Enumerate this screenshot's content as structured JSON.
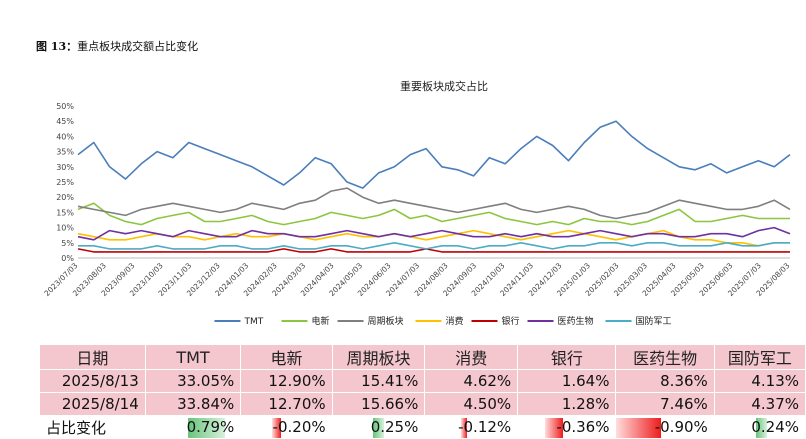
{
  "figure_label": "图 13：",
  "figure_title": "重点板块成交额占比变化",
  "chart_data": {
    "type": "line",
    "title": "重要板块成交占比",
    "ylim": [
      0,
      50
    ],
    "y_ticks": [
      "0%",
      "5%",
      "10%",
      "15%",
      "20%",
      "25%",
      "30%",
      "35%",
      "40%",
      "45%",
      "50%"
    ],
    "x_ticks": [
      "2023/07/03",
      "2023/08/03",
      "2023/09/03",
      "2023/10/03",
      "2023/11/03",
      "2023/12/03",
      "2024/01/03",
      "2024/02/03",
      "2024/03/03",
      "2024/04/03",
      "2024/05/03",
      "2024/06/03",
      "2024/07/03",
      "2024/08/03",
      "2024/09/03",
      "2024/10/03",
      "2024/11/03",
      "2024/12/03",
      "2025/01/03",
      "2025/02/03",
      "2025/03/03",
      "2025/04/03",
      "2025/05/03",
      "2025/06/03",
      "2025/07/03",
      "2025/08/03"
    ],
    "legend_position": "bottom",
    "series": [
      {
        "name": "TMT",
        "color": "#4a7ebb",
        "values": [
          34,
          38,
          30,
          26,
          31,
          35,
          33,
          38,
          36,
          34,
          32,
          30,
          27,
          24,
          28,
          33,
          31,
          25,
          23,
          28,
          30,
          34,
          36,
          30,
          29,
          27,
          33,
          31,
          36,
          40,
          37,
          32,
          38,
          43,
          45,
          40,
          36,
          33,
          30,
          29,
          31,
          28,
          30,
          32,
          30,
          34
        ]
      },
      {
        "name": "电新",
        "color": "#8cc63f",
        "values": [
          16,
          18,
          14,
          12,
          11,
          13,
          14,
          15,
          12,
          12,
          13,
          14,
          12,
          11,
          12,
          13,
          15,
          14,
          13,
          14,
          16,
          13,
          14,
          12,
          13,
          14,
          15,
          13,
          12,
          11,
          12,
          11,
          13,
          12,
          12,
          11,
          12,
          14,
          16,
          12,
          12,
          13,
          14,
          13,
          13,
          13
        ]
      },
      {
        "name": "周期板块",
        "color": "#7f7f7f",
        "values": [
          17,
          16,
          15,
          14,
          16,
          17,
          18,
          17,
          16,
          15,
          16,
          18,
          17,
          16,
          18,
          19,
          22,
          23,
          20,
          18,
          19,
          18,
          17,
          16,
          15,
          16,
          17,
          18,
          16,
          15,
          16,
          17,
          16,
          14,
          13,
          14,
          15,
          17,
          19,
          18,
          17,
          16,
          16,
          17,
          19,
          16
        ]
      },
      {
        "name": "消费",
        "color": "#ffc000",
        "values": [
          8,
          7,
          6,
          6,
          7,
          8,
          7,
          7,
          6,
          7,
          8,
          7,
          7,
          8,
          7,
          6,
          7,
          8,
          7,
          7,
          8,
          7,
          6,
          7,
          8,
          9,
          8,
          7,
          6,
          7,
          8,
          9,
          8,
          7,
          6,
          7,
          8,
          9,
          7,
          6,
          6,
          5,
          5,
          4,
          5,
          5
        ]
      },
      {
        "name": "银行",
        "color": "#c00000",
        "values": [
          3,
          2,
          2,
          2,
          2,
          2,
          2,
          2,
          2,
          2,
          2,
          2,
          2,
          3,
          2,
          2,
          3,
          2,
          2,
          2,
          2,
          2,
          3,
          2,
          2,
          2,
          2,
          2,
          2,
          2,
          2,
          2,
          2,
          2,
          2,
          2,
          2,
          2,
          2,
          2,
          2,
          2,
          2,
          2,
          2,
          2
        ]
      },
      {
        "name": "医药生物",
        "color": "#7030a0",
        "values": [
          7,
          6,
          9,
          8,
          9,
          8,
          7,
          9,
          8,
          7,
          7,
          9,
          8,
          8,
          7,
          7,
          8,
          9,
          8,
          7,
          8,
          7,
          8,
          9,
          8,
          7,
          7,
          8,
          7,
          8,
          7,
          7,
          8,
          9,
          8,
          7,
          8,
          8,
          7,
          7,
          8,
          8,
          7,
          9,
          10,
          8
        ]
      },
      {
        "name": "国防军工",
        "color": "#4bacc6",
        "values": [
          4,
          4,
          3,
          3,
          3,
          4,
          3,
          3,
          3,
          4,
          4,
          3,
          3,
          4,
          3,
          3,
          4,
          4,
          3,
          4,
          5,
          4,
          3,
          4,
          4,
          3,
          4,
          4,
          5,
          4,
          3,
          4,
          4,
          5,
          5,
          4,
          5,
          5,
          4,
          4,
          4,
          5,
          4,
          4,
          5,
          5
        ]
      }
    ]
  },
  "table": {
    "headers": [
      "日期",
      "TMT",
      "电新",
      "周期板块",
      "消费",
      "银行",
      "医药生物",
      "国防军工"
    ],
    "rows": [
      [
        "2025/8/13",
        "33.05%",
        "12.90%",
        "15.41%",
        "4.62%",
        "1.64%",
        "8.36%",
        "4.13%"
      ],
      [
        "2025/8/14",
        "33.84%",
        "12.70%",
        "15.66%",
        "4.50%",
        "1.28%",
        "7.46%",
        "4.37%"
      ]
    ],
    "change_label": "占比变化",
    "changes": [
      "0.79%",
      "-0.20%",
      "0.25%",
      "-0.12%",
      "-0.36%",
      "-0.90%",
      "0.24%"
    ],
    "change_values": [
      0.79,
      -0.2,
      0.25,
      -0.12,
      -0.36,
      -0.9,
      0.24
    ]
  }
}
